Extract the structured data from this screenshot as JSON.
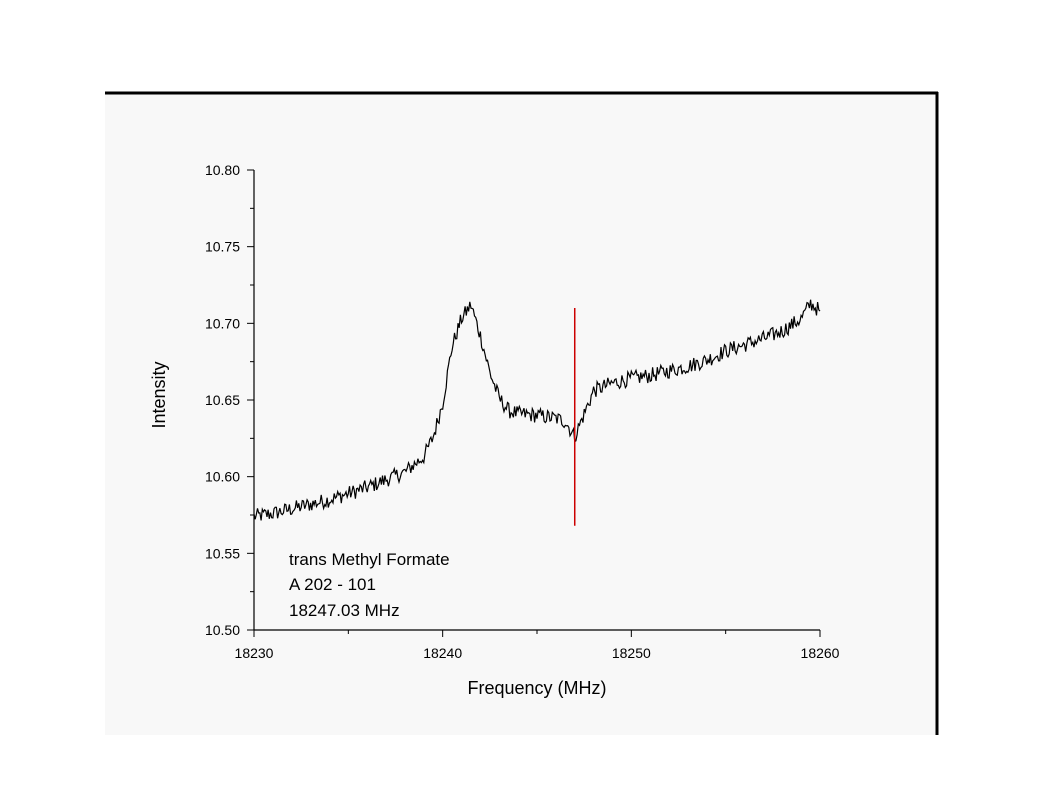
{
  "chart_data": {
    "type": "line",
    "xlabel": "Frequency (MHz)",
    "ylabel": "Intensity",
    "xlim": [
      18230,
      18260
    ],
    "ylim": [
      10.5,
      10.8
    ],
    "x_ticks": [
      "18230",
      "18240",
      "18250",
      "18260"
    ],
    "y_ticks": [
      "10.50",
      "10.55",
      "10.60",
      "10.65",
      "10.70",
      "10.75",
      "10.80"
    ],
    "grid": false,
    "series": [
      {
        "color": "#000000",
        "x": [
          18230,
          18231,
          18232,
          18233,
          18234,
          18235,
          18236,
          18237,
          18238,
          18239,
          18239.5,
          18240,
          18240.5,
          18241,
          18241.5,
          18242,
          18242.5,
          18243,
          18243.5,
          18244,
          18245,
          18246,
          18246.5,
          18247,
          18247.5,
          18248,
          18249,
          18250,
          18251,
          18252,
          18253,
          18254,
          18255,
          18256,
          18257,
          18258,
          18259,
          18259.5,
          18260
        ],
        "y": [
          10.574,
          10.576,
          10.579,
          10.582,
          10.585,
          10.589,
          10.593,
          10.598,
          10.603,
          10.613,
          10.626,
          10.648,
          10.685,
          10.703,
          10.712,
          10.692,
          10.668,
          10.651,
          10.643,
          10.641,
          10.64,
          10.638,
          10.636,
          10.626,
          10.641,
          10.656,
          10.661,
          10.664,
          10.666,
          10.669,
          10.672,
          10.676,
          10.682,
          10.686,
          10.69,
          10.695,
          10.703,
          10.713,
          10.708
        ]
      }
    ],
    "marker_line": {
      "x": 18247,
      "y_from": 10.568,
      "y_to": 10.71,
      "color": "#cc0000"
    },
    "annotation": [
      "trans Methyl Formate",
      "A 202 - 101",
      "18247.03 MHz"
    ]
  }
}
